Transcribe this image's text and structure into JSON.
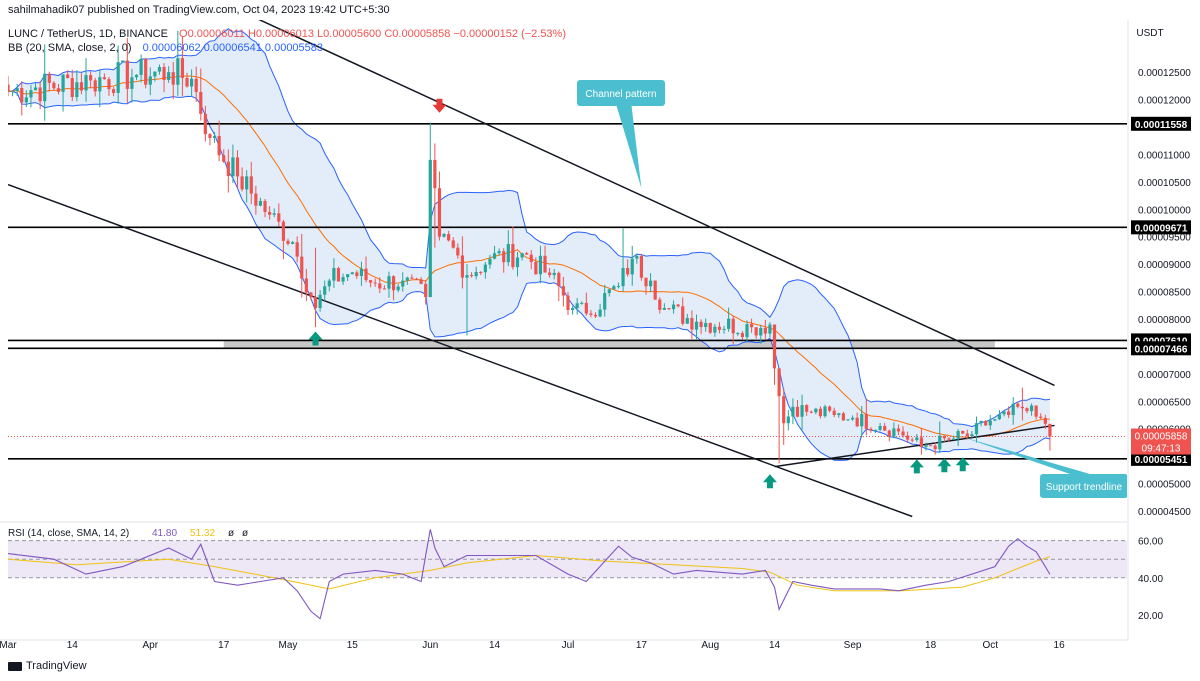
{
  "header": {
    "publisher": "sahilmahadik07 published on TradingView.com, Oct 04, 2023 19:42 UTC+5:30",
    "symbol": "LUNC / TetherUS, 1D, BINANCE",
    "ohlc": "O0.00006011  H0.00006013  L0.00005600  C0.00005858  −0.00000152 (−2.53%)",
    "bb_label": "BB (20, SMA, close, 2, 0)",
    "bb_values": "0.00006062  0.00006541  0.00005583"
  },
  "currency": "USDT",
  "watermark": "TradingView",
  "colors": {
    "up": "#26a69a",
    "down": "#ef5350",
    "bb_band": "#2962ff",
    "bb_fill": "#dbe9f8",
    "bb_basis": "#ff6d00",
    "rsi": "#7e57c2",
    "rsi_ma": "#f0c30f",
    "rsi_band": "#ede7f6",
    "callout": "#4bbfcf",
    "arrow_up": "#089981",
    "arrow_down": "#e53935",
    "trend": "#131722"
  },
  "chart_data": [
    {
      "type": "candlestick",
      "title": "LUNC / TetherUS, 1D, BINANCE",
      "ylabel": "USDT",
      "ylim": [
        4.3e-05,
        0.0001345
      ],
      "x_ticks": [
        "Mar",
        "14",
        "Apr",
        "17",
        "May",
        "15",
        "Jun",
        "14",
        "Jul",
        "17",
        "Aug",
        "14",
        "Sep",
        "18",
        "Oct",
        "16"
      ],
      "y_ticks": [
        "0.00012500",
        "0.00012000",
        "0.00011000",
        "0.00010500",
        "0.00010000",
        "0.00009500",
        "0.00009000",
        "0.00008500",
        "0.00008000",
        "0.00007000",
        "0.00006500",
        "0.00006000",
        "0.00005000",
        "0.00004500"
      ],
      "price_levels": [
        {
          "label": "0.00011558",
          "value": 0.00011558
        },
        {
          "label": "0.00009671",
          "value": 9.671e-05
        },
        {
          "label": "0.00007610",
          "value": 7.61e-05
        },
        {
          "label": "0.00007466",
          "value": 7.466e-05
        },
        {
          "label": "0.00005451",
          "value": 5.451e-05
        }
      ],
      "current_price": {
        "label": "0.00005858",
        "value": 5.858e-05,
        "countdown": "09:47:13"
      },
      "support_zone": [
        7.466e-05,
        7.61e-05
      ],
      "anchor_closes": [
        {
          "day": 0,
          "close": 0.0001215
        },
        {
          "day": 18,
          "close": 0.0001235
        },
        {
          "day": 28,
          "close": 0.0001245
        },
        {
          "day": 35,
          "close": 0.000125
        },
        {
          "day": 40,
          "close": 0.0001238
        },
        {
          "day": 44,
          "close": 0.000113
        },
        {
          "day": 50,
          "close": 0.000106
        },
        {
          "day": 57,
          "close": 9.9e-05
        },
        {
          "day": 62,
          "close": 9.4e-05
        },
        {
          "day": 67,
          "close": 8.2e-05
        },
        {
          "day": 70,
          "close": 8.7e-05
        },
        {
          "day": 75,
          "close": 8.85e-05
        },
        {
          "day": 80,
          "close": 8.65e-05
        },
        {
          "day": 86,
          "close": 8.7e-05
        },
        {
          "day": 91,
          "close": 8.4e-05
        },
        {
          "day": 92,
          "close": 0.000109
        },
        {
          "day": 94,
          "close": 9.5e-05
        },
        {
          "day": 97,
          "close": 9.3e-05
        },
        {
          "day": 100,
          "close": 8.8e-05
        },
        {
          "day": 105,
          "close": 9.1e-05
        },
        {
          "day": 112,
          "close": 9.2e-05
        },
        {
          "day": 118,
          "close": 8.8e-05
        },
        {
          "day": 123,
          "close": 8.2e-05
        },
        {
          "day": 126,
          "close": 8.1e-05
        },
        {
          "day": 133,
          "close": 8.6e-05
        },
        {
          "day": 136,
          "close": 9.1e-05
        },
        {
          "day": 140,
          "close": 8.7e-05
        },
        {
          "day": 143,
          "close": 8.2e-05
        },
        {
          "day": 150,
          "close": 7.95e-05
        },
        {
          "day": 162,
          "close": 7.85e-05
        },
        {
          "day": 166,
          "close": 7.9e-05
        },
        {
          "day": 167,
          "close": 7.1e-05
        },
        {
          "day": 169,
          "close": 6.1e-05
        },
        {
          "day": 171,
          "close": 6.4e-05
        },
        {
          "day": 175,
          "close": 6.3e-05
        },
        {
          "day": 180,
          "close": 6.25e-05
        },
        {
          "day": 184,
          "close": 6.2e-05
        },
        {
          "day": 190,
          "close": 6.05e-05
        },
        {
          "day": 194,
          "close": 5.95e-05
        },
        {
          "day": 199,
          "close": 5.67e-05
        },
        {
          "day": 205,
          "close": 5.8e-05
        },
        {
          "day": 210,
          "close": 5.9e-05
        },
        {
          "day": 214,
          "close": 6.15e-05
        },
        {
          "day": 218,
          "close": 6.25e-05
        },
        {
          "day": 220,
          "close": 6.4e-05
        },
        {
          "day": 222,
          "close": 6.32e-05
        },
        {
          "day": 224,
          "close": 6.22e-05
        },
        {
          "day": 226,
          "close": 6.09e-05
        },
        {
          "day": 227,
          "close": 5.86e-05
        }
      ],
      "wick_events": [
        {
          "day": 40,
          "high": 0.0001255,
          "low": 0.0001205
        },
        {
          "day": 67,
          "high": 9.3e-05,
          "low": 7.85e-05
        },
        {
          "day": 92,
          "high": 0.0001158,
          "low": 8.42e-05
        },
        {
          "day": 93,
          "high": 0.000112,
          "low": 9.3e-05
        },
        {
          "day": 100,
          "high": 9e-05,
          "low": 7.7e-05
        },
        {
          "day": 134,
          "high": 9.65e-05,
          "low": 8.5e-05
        },
        {
          "day": 167,
          "high": 7.9e-05,
          "low": 6.8e-05
        },
        {
          "day": 168,
          "high": 6.9e-05,
          "low": 5.37e-05
        },
        {
          "day": 221,
          "high": 6.75e-05,
          "low": 6.15e-05
        },
        {
          "day": 227,
          "high": 6.01e-05,
          "low": 5.6e-05
        }
      ],
      "overlays": [
        {
          "name": "Channel pattern",
          "type": "trendline",
          "points": [
            [
              "day",
              51,
              0.000136
            ],
            [
              "day",
              228,
              6.79e-05
            ]
          ]
        },
        {
          "name": "Channel lower",
          "type": "trendline",
          "points": [
            [
              "day",
              0,
              0.0001045
            ],
            [
              "day",
              197,
              4.4e-05
            ]
          ]
        },
        {
          "name": "Support trendline",
          "type": "trendline",
          "points": [
            [
              "day",
              167,
              5.31e-05
            ],
            [
              "day",
              228,
              6.06e-05
            ]
          ]
        }
      ],
      "annotations": [
        {
          "text": "Channel pattern"
        },
        {
          "text": "Support trendline"
        }
      ],
      "markers": [
        {
          "type": "down-arrow",
          "day": 94,
          "value": 0.0001185
        },
        {
          "type": "up-arrow",
          "day": 67,
          "value": 7.68e-05
        },
        {
          "type": "up-arrow",
          "day": 166,
          "value": 5.08e-05
        },
        {
          "type": "up-arrow",
          "day": 198,
          "value": 5.35e-05
        },
        {
          "type": "up-arrow",
          "day": 204,
          "value": 5.37e-05
        },
        {
          "type": "up-arrow",
          "day": 208,
          "value": 5.39e-05
        }
      ]
    },
    {
      "type": "line",
      "title": "RSI (14, close, SMA, 14, 2)",
      "values_label": [
        "41.80",
        "51.32",
        "ø",
        "ø"
      ],
      "ylim": [
        13,
        70
      ],
      "y_ticks": [
        60,
        40,
        20
      ],
      "band": [
        40,
        60
      ],
      "series": [
        {
          "name": "RSI",
          "points": [
            [
              0,
              53
            ],
            [
              10,
              50
            ],
            [
              17,
              42
            ],
            [
              25,
              46
            ],
            [
              35,
              56
            ],
            [
              40,
              50
            ],
            [
              42,
              58
            ],
            [
              45,
              38
            ],
            [
              50,
              36
            ],
            [
              55,
              38
            ],
            [
              60,
              40
            ],
            [
              63,
              33
            ],
            [
              66,
              22
            ],
            [
              68,
              18
            ],
            [
              70,
              38
            ],
            [
              73,
              42
            ],
            [
              80,
              44
            ],
            [
              86,
              42
            ],
            [
              90,
              38
            ],
            [
              92,
              66
            ],
            [
              93,
              56
            ],
            [
              95,
              46
            ],
            [
              100,
              52
            ],
            [
              106,
              52
            ],
            [
              115,
              52
            ],
            [
              122,
              42
            ],
            [
              126,
              38
            ],
            [
              133,
              57
            ],
            [
              136,
              51
            ],
            [
              140,
              48
            ],
            [
              145,
              42
            ],
            [
              150,
              44
            ],
            [
              160,
              42
            ],
            [
              165,
              44
            ],
            [
              167,
              35
            ],
            [
              168,
              23
            ],
            [
              171,
              38
            ],
            [
              175,
              36
            ],
            [
              180,
              34
            ],
            [
              190,
              34
            ],
            [
              194,
              33
            ],
            [
              200,
              36
            ],
            [
              205,
              38
            ],
            [
              210,
              42
            ],
            [
              215,
              46
            ],
            [
              218,
              57
            ],
            [
              220,
              61
            ],
            [
              222,
              57
            ],
            [
              224,
              54
            ],
            [
              226,
              46
            ],
            [
              227,
              41.8
            ]
          ]
        },
        {
          "name": "RSI SMA",
          "points": [
            [
              0,
              50
            ],
            [
              15,
              47
            ],
            [
              35,
              50
            ],
            [
              45,
              46
            ],
            [
              60,
              39
            ],
            [
              70,
              34
            ],
            [
              80,
              40
            ],
            [
              92,
              44
            ],
            [
              100,
              48
            ],
            [
              115,
              52
            ],
            [
              130,
              49
            ],
            [
              145,
              47
            ],
            [
              160,
              45
            ],
            [
              166,
              43
            ],
            [
              172,
              36
            ],
            [
              180,
              33
            ],
            [
              195,
              33
            ],
            [
              208,
              35
            ],
            [
              215,
              40
            ],
            [
              220,
              45
            ],
            [
              224,
              49
            ],
            [
              227,
              51.32
            ]
          ]
        }
      ]
    }
  ]
}
